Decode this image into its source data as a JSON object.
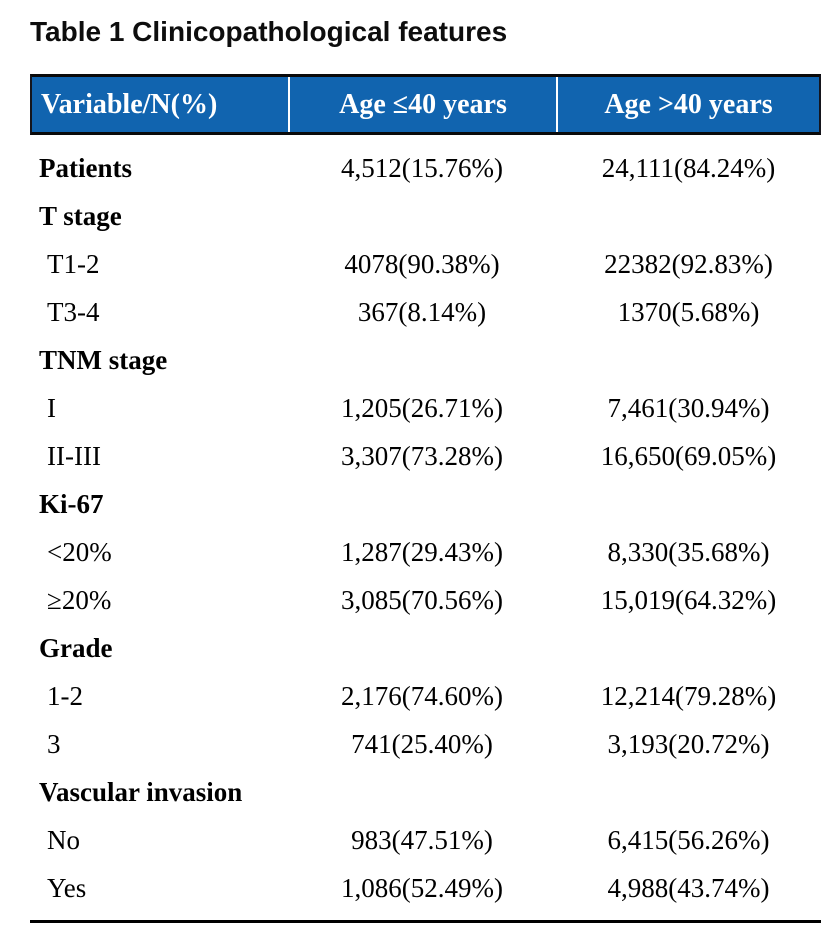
{
  "title": "Table 1 Clinicopathological features",
  "colors": {
    "header_bg": "#1164af",
    "header_text": "#ffffff",
    "border": "#000000",
    "body_text": "#000000"
  },
  "table": {
    "columns": [
      "Variable/N(%)",
      "Age ≤40 years",
      "Age >40 years"
    ],
    "rows": [
      {
        "label": "Patients",
        "style": "group",
        "le40": "4,512(15.76%)",
        "gt40": "24,111(84.24%)"
      },
      {
        "label": "T stage",
        "style": "group",
        "le40": "",
        "gt40": ""
      },
      {
        "label": "T1-2",
        "style": "sub",
        "le40": "4078(90.38%)",
        "gt40": "22382(92.83%)"
      },
      {
        "label": "T3-4",
        "style": "sub",
        "le40": "367(8.14%)",
        "gt40": "1370(5.68%)"
      },
      {
        "label": "TNM stage",
        "style": "group",
        "le40": "",
        "gt40": ""
      },
      {
        "label": "I",
        "style": "sub",
        "le40": "1,205(26.71%)",
        "gt40": "7,461(30.94%)"
      },
      {
        "label": "II-III",
        "style": "sub",
        "le40": "3,307(73.28%)",
        "gt40": "16,650(69.05%)"
      },
      {
        "label": "Ki-67",
        "style": "group",
        "le40": "",
        "gt40": ""
      },
      {
        "label": "<20%",
        "style": "sub",
        "le40": "1,287(29.43%)",
        "gt40": "8,330(35.68%)"
      },
      {
        "label": "≥20%",
        "style": "sub",
        "le40": "3,085(70.56%)",
        "gt40": "15,019(64.32%)"
      },
      {
        "label": "Grade",
        "style": "group",
        "le40": "",
        "gt40": ""
      },
      {
        "label": "1-2",
        "style": "sub",
        "le40": "2,176(74.60%)",
        "gt40": "12,214(79.28%)"
      },
      {
        "label": "3",
        "style": "sub",
        "le40": "741(25.40%)",
        "gt40": "3,193(20.72%)"
      },
      {
        "label": "Vascular invasion",
        "style": "group",
        "le40": "",
        "gt40": ""
      },
      {
        "label": "No",
        "style": "sub",
        "le40": "983(47.51%)",
        "gt40": "6,415(56.26%)"
      },
      {
        "label": "Yes",
        "style": "sub",
        "le40": "1,086(52.49%)",
        "gt40": "4,988(43.74%)"
      }
    ]
  }
}
